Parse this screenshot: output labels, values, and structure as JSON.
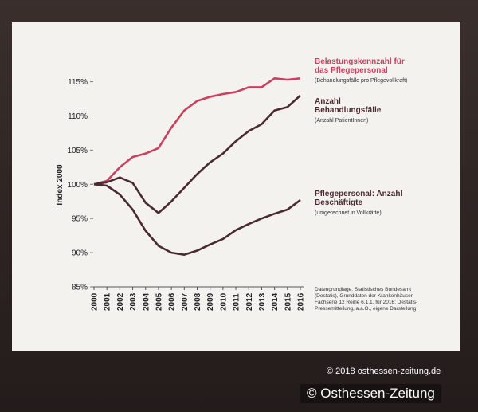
{
  "chart_data": {
    "type": "line",
    "y_label": "Index 2000",
    "x": [
      2000,
      2001,
      2002,
      2003,
      2004,
      2005,
      2006,
      2007,
      2008,
      2009,
      2010,
      2011,
      2012,
      2013,
      2014,
      2015,
      2016
    ],
    "xlim": [
      2000,
      2016
    ],
    "ylim": [
      85,
      116
    ],
    "yticks": [
      {
        "value": 85,
        "label": "85%"
      },
      {
        "value": 90,
        "label": "90%"
      },
      {
        "value": 95,
        "label": "95%"
      },
      {
        "value": 100,
        "label": "100%"
      },
      {
        "value": 105,
        "label": "105%"
      },
      {
        "value": 110,
        "label": "110%"
      },
      {
        "value": 115,
        "label": "115%"
      }
    ],
    "series": [
      {
        "name": "Belastungskennzahl für das Pflegepersonal",
        "note": "(Behandlungsfälle pro Pflegevollkraft)",
        "color": "#c8415e",
        "values": [
          100,
          100.5,
          102.5,
          104,
          104.5,
          105.3,
          108.3,
          110.8,
          112.2,
          112.8,
          113.2,
          113.5,
          114.2,
          114.2,
          115.5,
          115.3,
          115.5
        ]
      },
      {
        "name": "Anzahl Behandlungsfälle",
        "note": "(Anzahl PatientInnen)",
        "color": "#4a2a31",
        "values": [
          100,
          100.3,
          101,
          100.2,
          97.3,
          95.8,
          97.5,
          99.5,
          101.5,
          103.2,
          104.5,
          106.3,
          107.8,
          108.8,
          110.8,
          111.3,
          113
        ]
      },
      {
        "name": "Pflegepersonal: Anzahl Beschäftigte",
        "note": "(umgerechnet in Vollkräfte)",
        "color": "#4a2a31",
        "values": [
          100,
          99.8,
          98.5,
          96.3,
          93.2,
          91,
          90,
          89.7,
          90.3,
          91.2,
          92,
          93.3,
          94.2,
          95,
          95.7,
          96.3,
          97.7
        ]
      }
    ],
    "source": "Datengrundlage: Statistisches Bundesamt (Destatis), Grunddaten der Krankenhäuser, Fachserie 12 Reihe 6.1.1, für 2016: Destatis-Pressemitteilung, a.a.O., eigene Darstellung"
  },
  "watermarks": [
    "© 2018 osthessen-zeitung.de",
    "© Osthessen-Zeitung"
  ]
}
